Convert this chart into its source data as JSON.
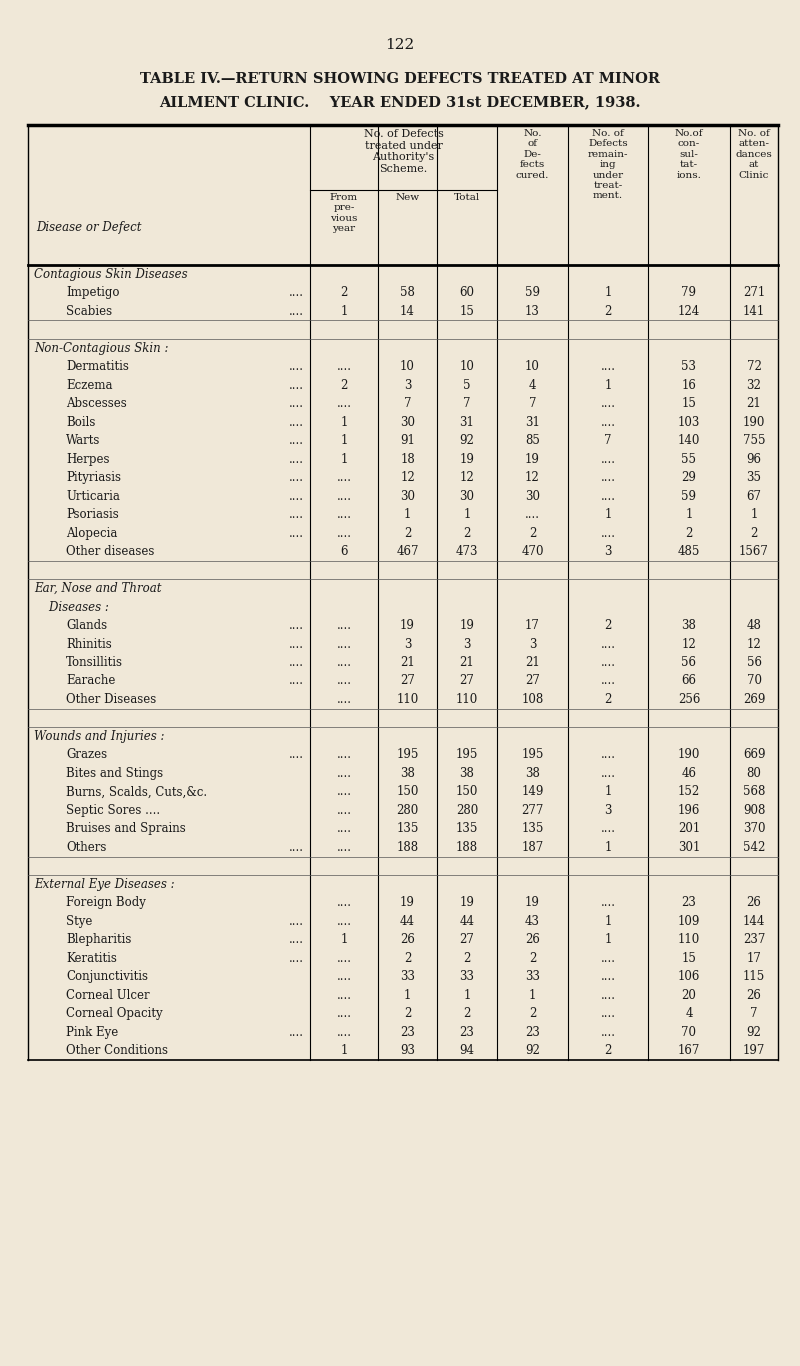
{
  "page_number": "122",
  "title1": "TABLE IV.—RETURN SHOWING DEFECTS TREATED AT MINOR",
  "title2": "AILMENT CLINIC.    YEAR ENDED 31st DECEMBER, 1938.",
  "bg_color": "#f0e8d8",
  "text_color": "#1a1a1a",
  "rows": [
    {
      "label": "Contagious Skin Diseases",
      "indent": 0,
      "italic": true,
      "is_section": true,
      "data": [
        "",
        "",
        "",
        "",
        "",
        "",
        ""
      ]
    },
    {
      "label": "Impetigo",
      "indent": 1,
      "italic": false,
      "is_section": false,
      "data": [
        "2",
        "58",
        "60",
        "59",
        "1",
        "79",
        "271"
      ],
      "dots": true
    },
    {
      "label": "Scabies",
      "indent": 1,
      "italic": false,
      "is_section": false,
      "data": [
        "1",
        "14",
        "15",
        "13",
        "2",
        "124",
        "141"
      ],
      "dots": true
    },
    {
      "label": "",
      "indent": 0,
      "italic": false,
      "is_section": false,
      "is_blank": true,
      "data": [
        "",
        "",
        "",
        "",
        "",
        "",
        ""
      ]
    },
    {
      "label": "Non-Contagious Skin :",
      "indent": 0,
      "italic": true,
      "is_section": true,
      "data": [
        "",
        "",
        "",
        "",
        "",
        "",
        ""
      ]
    },
    {
      "label": "Dermatitis",
      "indent": 1,
      "italic": false,
      "is_section": false,
      "data": [
        "....",
        "10",
        "10",
        "10",
        "....",
        "53",
        "72"
      ],
      "dots": true
    },
    {
      "label": "Eczema",
      "indent": 1,
      "italic": false,
      "is_section": false,
      "data": [
        "2",
        "3",
        "5",
        "4",
        "1",
        "16",
        "32"
      ],
      "dots": true
    },
    {
      "label": "Abscesses",
      "indent": 1,
      "italic": false,
      "is_section": false,
      "data": [
        "....",
        "7",
        "7",
        "7",
        "....",
        "15",
        "21"
      ],
      "dots": true
    },
    {
      "label": "Boils",
      "indent": 1,
      "italic": false,
      "is_section": false,
      "data": [
        "1",
        "30",
        "31",
        "31",
        "....",
        "103",
        "190"
      ],
      "dots": true
    },
    {
      "label": "Warts",
      "indent": 1,
      "italic": false,
      "is_section": false,
      "data": [
        "1",
        "91",
        "92",
        "85",
        "7",
        "140",
        "755"
      ],
      "dots": true
    },
    {
      "label": "Herpes",
      "indent": 1,
      "italic": false,
      "is_section": false,
      "data": [
        "1",
        "18",
        "19",
        "19",
        "....",
        "55",
        "96"
      ],
      "dots": true
    },
    {
      "label": "Pityriasis",
      "indent": 1,
      "italic": false,
      "is_section": false,
      "data": [
        "....",
        "12",
        "12",
        "12",
        "....",
        "29",
        "35"
      ],
      "dots": true
    },
    {
      "label": "Urticaria",
      "indent": 1,
      "italic": false,
      "is_section": false,
      "data": [
        "....",
        "30",
        "30",
        "30",
        "....",
        "59",
        "67"
      ],
      "dots": true
    },
    {
      "label": "Psoriasis",
      "indent": 1,
      "italic": false,
      "is_section": false,
      "data": [
        "....",
        "1",
        "1",
        "....",
        "1",
        "1",
        "1"
      ],
      "dots": true
    },
    {
      "label": "Alopecia",
      "indent": 1,
      "italic": false,
      "is_section": false,
      "data": [
        "....",
        "2",
        "2",
        "2",
        "....",
        "2",
        "2"
      ],
      "dots": true
    },
    {
      "label": "Other diseases",
      "indent": 1,
      "italic": false,
      "is_section": false,
      "data": [
        "6",
        "467",
        "473",
        "470",
        "3",
        "485",
        "1567"
      ],
      "dots": false
    },
    {
      "label": "",
      "indent": 0,
      "italic": false,
      "is_section": false,
      "is_blank": true,
      "data": [
        "",
        "",
        "",
        "",
        "",
        "",
        ""
      ]
    },
    {
      "label": "Ear, Nose and Throat",
      "indent": 0,
      "italic": true,
      "is_section": true,
      "data": [
        "",
        "",
        "",
        "",
        "",
        "",
        ""
      ]
    },
    {
      "label": "    Diseases :",
      "indent": 0,
      "italic": true,
      "is_section": true,
      "sub": true,
      "data": [
        "",
        "",
        "",
        "",
        "",
        "",
        ""
      ]
    },
    {
      "label": "Glands",
      "indent": 1,
      "italic": false,
      "is_section": false,
      "data": [
        "....",
        "19",
        "19",
        "17",
        "2",
        "38",
        "48"
      ],
      "dots": true
    },
    {
      "label": "Rhinitis",
      "indent": 1,
      "italic": false,
      "is_section": false,
      "data": [
        "....",
        "3",
        "3",
        "3",
        "....",
        "12",
        "12"
      ],
      "dots": true
    },
    {
      "label": "Tonsillitis",
      "indent": 1,
      "italic": false,
      "is_section": false,
      "data": [
        "....",
        "21",
        "21",
        "21",
        "....",
        "56",
        "56"
      ],
      "dots": true
    },
    {
      "label": "Earache",
      "indent": 1,
      "italic": false,
      "is_section": false,
      "data": [
        "....",
        "27",
        "27",
        "27",
        "....",
        "66",
        "70"
      ],
      "dots": true
    },
    {
      "label": "Other Diseases",
      "indent": 1,
      "italic": false,
      "is_section": false,
      "data": [
        "....",
        "110",
        "110",
        "108",
        "2",
        "256",
        "269"
      ],
      "dots": false
    },
    {
      "label": "",
      "indent": 0,
      "italic": false,
      "is_section": false,
      "is_blank": true,
      "data": [
        "",
        "",
        "",
        "",
        "",
        "",
        ""
      ]
    },
    {
      "label": "Wounds and Injuries :",
      "indent": 0,
      "italic": true,
      "is_section": true,
      "data": [
        "",
        "",
        "",
        "",
        "",
        "",
        ""
      ]
    },
    {
      "label": "Grazes",
      "indent": 1,
      "italic": false,
      "is_section": false,
      "data": [
        "....",
        "195",
        "195",
        "195",
        "....",
        "190",
        "669"
      ],
      "dots": true
    },
    {
      "label": "Bites and Stings",
      "indent": 1,
      "italic": false,
      "is_section": false,
      "data": [
        "....",
        "38",
        "38",
        "38",
        "....",
        "46",
        "80"
      ],
      "dots": false
    },
    {
      "label": "Burns, Scalds, Cuts,&c.",
      "indent": 1,
      "italic": false,
      "is_section": false,
      "data": [
        "....",
        "150",
        "150",
        "149",
        "1",
        "152",
        "568"
      ],
      "dots": false
    },
    {
      "label": "Septic Sores ....",
      "indent": 1,
      "italic": false,
      "is_section": false,
      "data": [
        "....",
        "280",
        "280",
        "277",
        "3",
        "196",
        "908"
      ],
      "dots": false
    },
    {
      "label": "Bruises and Sprains",
      "indent": 1,
      "italic": false,
      "is_section": false,
      "data": [
        "....",
        "135",
        "135",
        "135",
        "....",
        "201",
        "370"
      ],
      "dots": false
    },
    {
      "label": "Others",
      "indent": 1,
      "italic": false,
      "is_section": false,
      "data": [
        "....",
        "188",
        "188",
        "187",
        "1",
        "301",
        "542"
      ],
      "dots": true
    },
    {
      "label": "",
      "indent": 0,
      "italic": false,
      "is_section": false,
      "is_blank": true,
      "data": [
        "",
        "",
        "",
        "",
        "",
        "",
        ""
      ]
    },
    {
      "label": "External Eye Diseases :",
      "indent": 0,
      "italic": true,
      "is_section": true,
      "data": [
        "",
        "",
        "",
        "",
        "",
        "",
        ""
      ]
    },
    {
      "label": "Foreign Body",
      "indent": 1,
      "italic": false,
      "is_section": false,
      "data": [
        "....",
        "19",
        "19",
        "19",
        "....",
        "23",
        "26"
      ],
      "dots": false
    },
    {
      "label": "Stye",
      "indent": 1,
      "italic": false,
      "is_section": false,
      "data": [
        "....",
        "44",
        "44",
        "43",
        "1",
        "109",
        "144"
      ],
      "dots": true
    },
    {
      "label": "Blepharitis",
      "indent": 1,
      "italic": false,
      "is_section": false,
      "data": [
        "1",
        "26",
        "27",
        "26",
        "1",
        "110",
        "237"
      ],
      "dots": true
    },
    {
      "label": "Keratitis",
      "indent": 1,
      "italic": false,
      "is_section": false,
      "data": [
        "....",
        "2",
        "2",
        "2",
        "....",
        "15",
        "17"
      ],
      "dots": true
    },
    {
      "label": "Conjunctivitis",
      "indent": 1,
      "italic": false,
      "is_section": false,
      "data": [
        "....",
        "33",
        "33",
        "33",
        "....",
        "106",
        "115"
      ],
      "dots": false
    },
    {
      "label": "Corneal Ulcer",
      "indent": 1,
      "italic": false,
      "is_section": false,
      "data": [
        "....",
        "1",
        "1",
        "1",
        "....",
        "20",
        "26"
      ],
      "dots": false
    },
    {
      "label": "Corneal Opacity",
      "indent": 1,
      "italic": false,
      "is_section": false,
      "data": [
        "....",
        "2",
        "2",
        "2",
        "....",
        "4",
        "7"
      ],
      "dots": false
    },
    {
      "label": "Pink Eye",
      "indent": 1,
      "italic": false,
      "is_section": false,
      "data": [
        "....",
        "23",
        "23",
        "23",
        "....",
        "70",
        "92"
      ],
      "dots": true
    },
    {
      "label": "Other Conditions",
      "indent": 1,
      "italic": false,
      "is_section": false,
      "data": [
        "1",
        "93",
        "94",
        "92",
        "2",
        "167",
        "197"
      ],
      "dots": false
    }
  ]
}
